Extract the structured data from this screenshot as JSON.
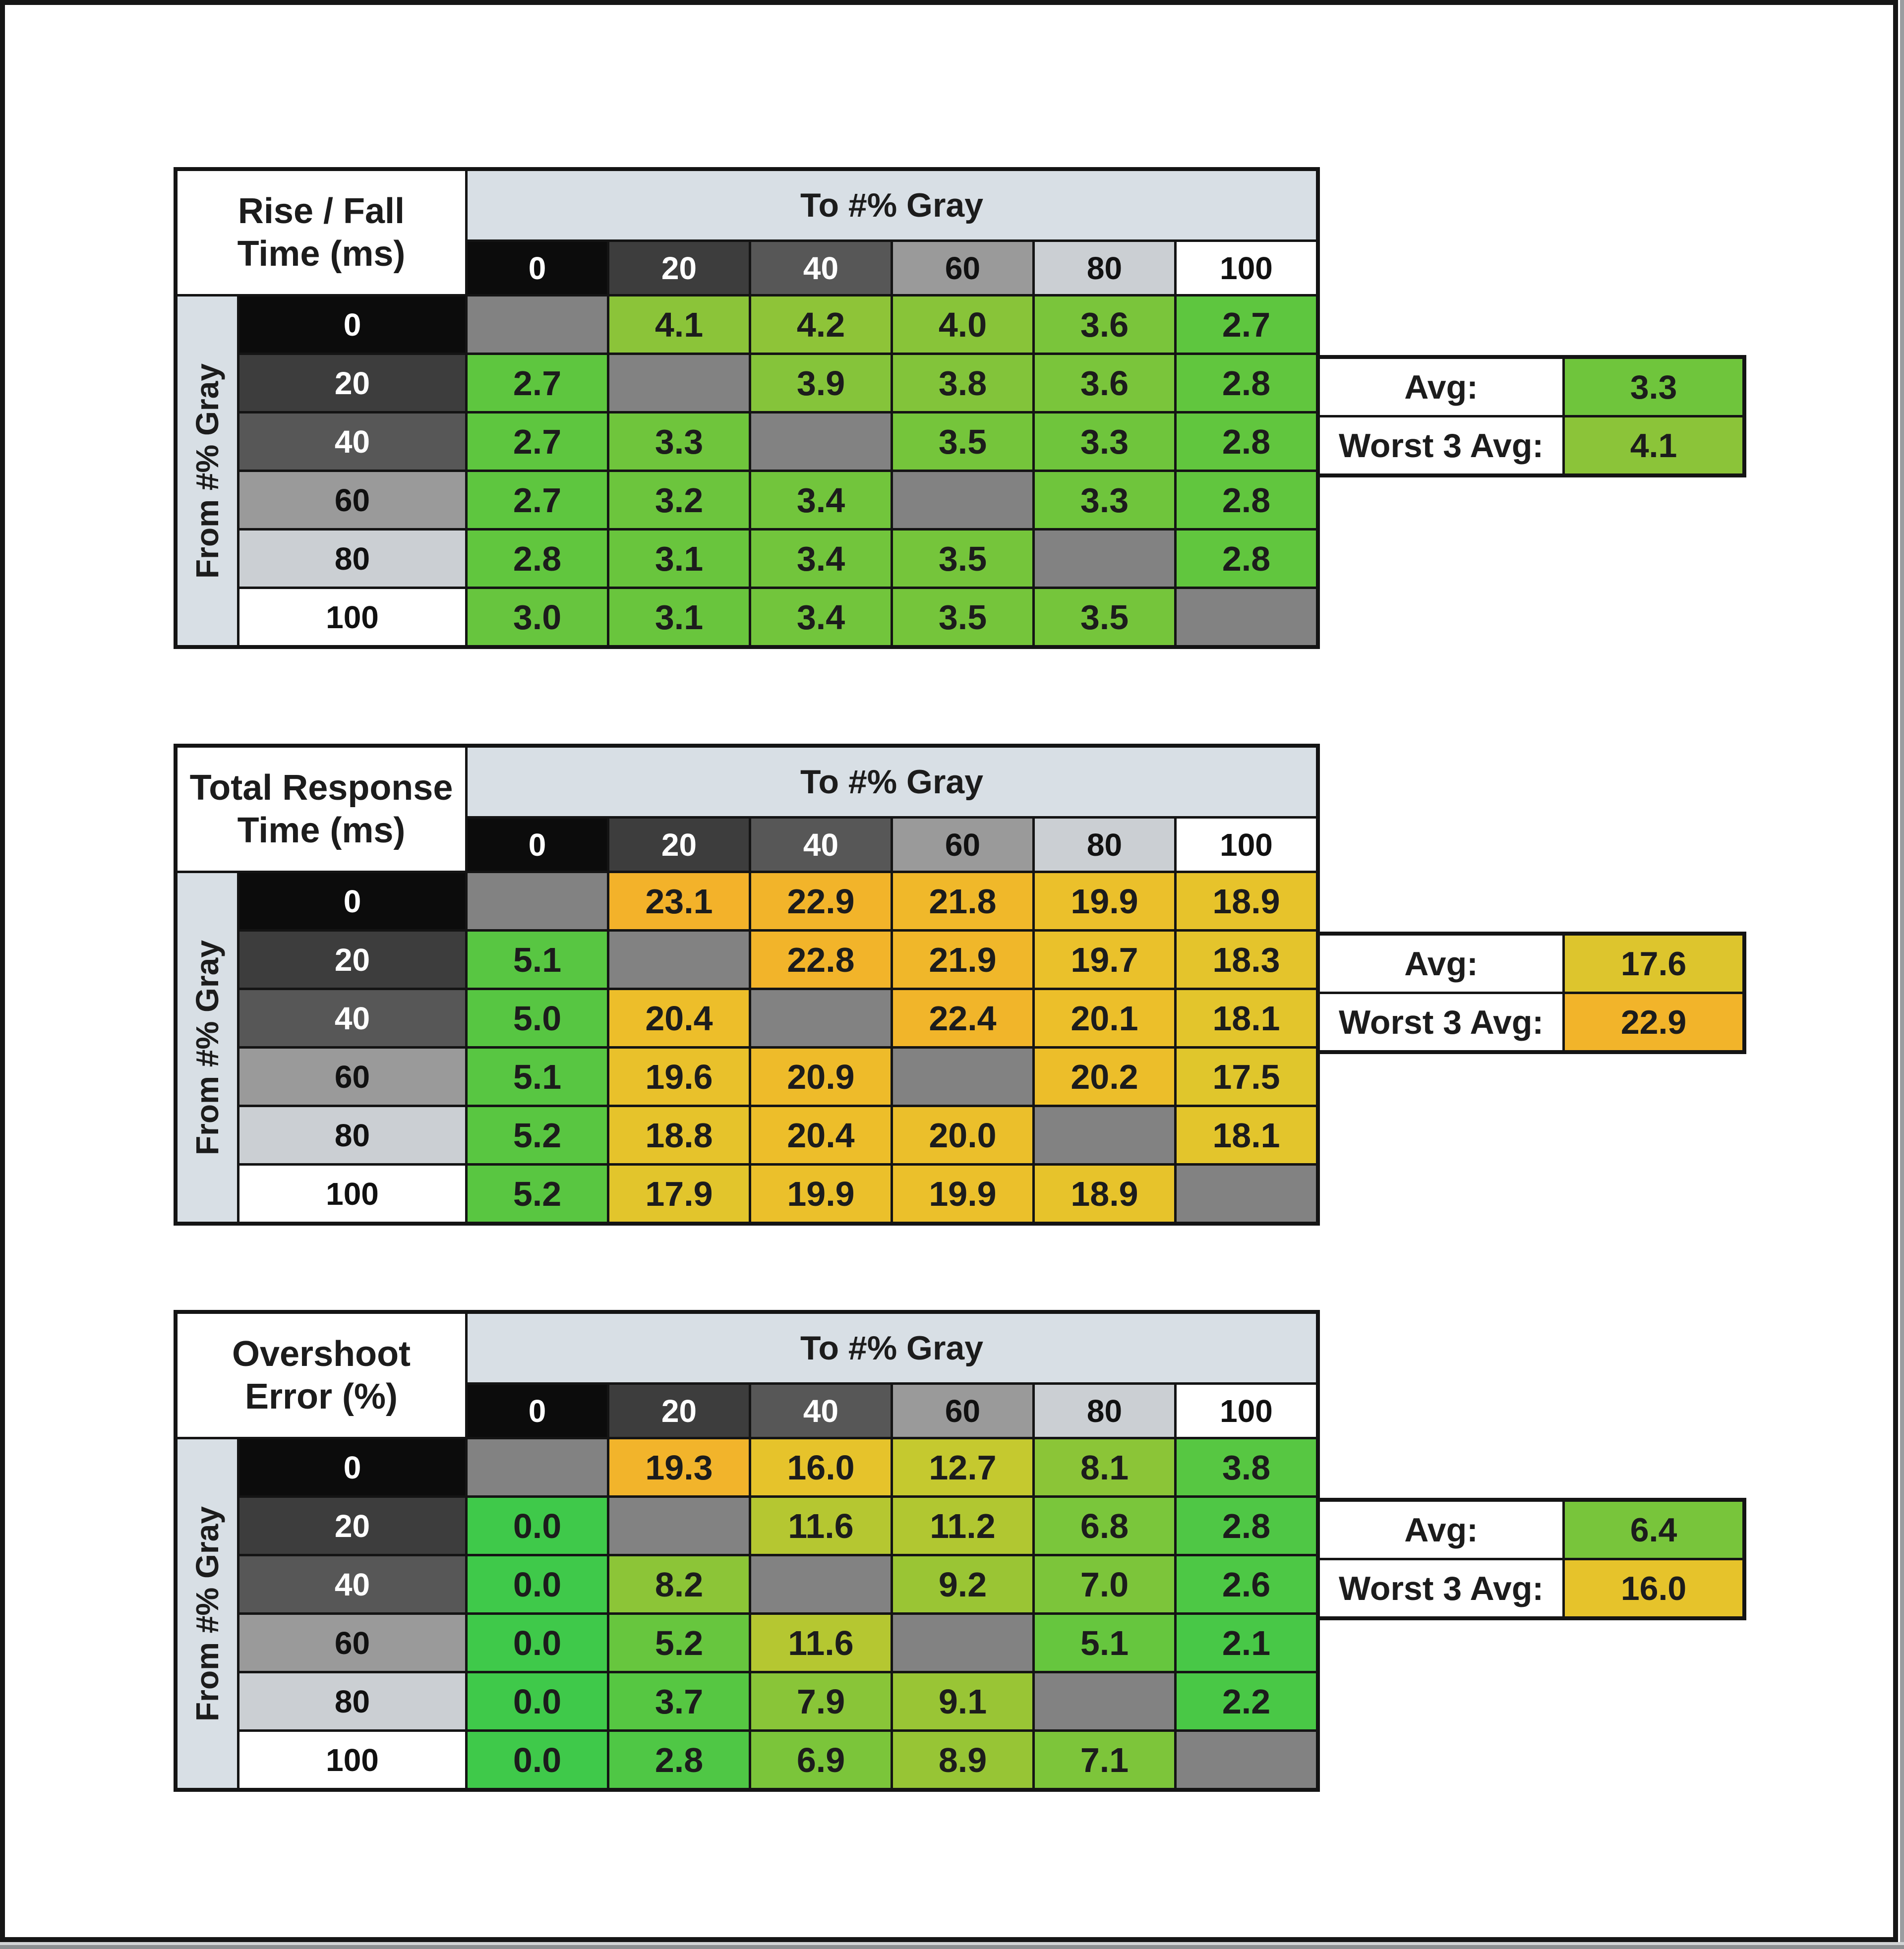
{
  "chart_data": [
    {
      "type": "heatmap",
      "title_line1": "Rise / Fall",
      "title_line2": "Time (ms)",
      "col_axis_label": "To #% Gray",
      "row_axis_label": "From #% Gray",
      "columns": [
        "0",
        "20",
        "40",
        "60",
        "80",
        "100"
      ],
      "rows": [
        "0",
        "20",
        "40",
        "60",
        "80",
        "100"
      ],
      "cells": [
        [
          null,
          {
            "v": "4.1",
            "c": "#8bc439"
          },
          {
            "v": "4.2",
            "c": "#8ec438"
          },
          {
            "v": "4.0",
            "c": "#88c439"
          },
          {
            "v": "3.6",
            "c": "#7ac53b"
          },
          {
            "v": "2.7",
            "c": "#5ec63f"
          }
        ],
        [
          {
            "v": "2.7",
            "c": "#5ec63f"
          },
          null,
          {
            "v": "3.9",
            "c": "#85c43a"
          },
          {
            "v": "3.8",
            "c": "#82c43a"
          },
          {
            "v": "3.6",
            "c": "#7ac53b"
          },
          {
            "v": "2.8",
            "c": "#61c63e"
          }
        ],
        [
          {
            "v": "2.7",
            "c": "#5ec63f"
          },
          {
            "v": "3.3",
            "c": "#6fc53c"
          },
          null,
          {
            "v": "3.5",
            "c": "#75c53b"
          },
          {
            "v": "3.3",
            "c": "#6fc53c"
          },
          {
            "v": "2.8",
            "c": "#61c63e"
          }
        ],
        [
          {
            "v": "2.7",
            "c": "#5ec63f"
          },
          {
            "v": "3.2",
            "c": "#6cc53d"
          },
          {
            "v": "3.4",
            "c": "#72c53c"
          },
          null,
          {
            "v": "3.3",
            "c": "#6fc53c"
          },
          {
            "v": "2.8",
            "c": "#61c63e"
          }
        ],
        [
          {
            "v": "2.8",
            "c": "#61c63e"
          },
          {
            "v": "3.1",
            "c": "#69c53d"
          },
          {
            "v": "3.4",
            "c": "#72c53c"
          },
          {
            "v": "3.5",
            "c": "#75c53b"
          },
          null,
          {
            "v": "2.8",
            "c": "#61c63e"
          }
        ],
        [
          {
            "v": "3.0",
            "c": "#67c53e"
          },
          {
            "v": "3.1",
            "c": "#69c53d"
          },
          {
            "v": "3.4",
            "c": "#72c53c"
          },
          {
            "v": "3.5",
            "c": "#75c53b"
          },
          {
            "v": "3.5",
            "c": "#75c53b"
          },
          null
        ]
      ],
      "summary": {
        "avg_label": "Avg:",
        "avg_value": "3.3",
        "avg_color": "#6fc53c",
        "worst_label": "Worst 3 Avg:",
        "worst_value": "4.1",
        "worst_color": "#8bc439"
      }
    },
    {
      "type": "heatmap",
      "title_line1": "Total Response",
      "title_line2": "Time (ms)",
      "col_axis_label": "To #% Gray",
      "row_axis_label": "From #% Gray",
      "columns": [
        "0",
        "20",
        "40",
        "60",
        "80",
        "100"
      ],
      "rows": [
        "0",
        "20",
        "40",
        "60",
        "80",
        "100"
      ],
      "cells": [
        [
          null,
          {
            "v": "23.1",
            "c": "#f3b22a"
          },
          {
            "v": "22.9",
            "c": "#f2b42a"
          },
          {
            "v": "21.8",
            "c": "#f0b82a"
          },
          {
            "v": "19.9",
            "c": "#ebc02b"
          },
          {
            "v": "18.9",
            "c": "#e7c32b"
          }
        ],
        [
          {
            "v": "5.1",
            "c": "#58c642"
          },
          null,
          {
            "v": "22.8",
            "c": "#f2b42a"
          },
          {
            "v": "21.9",
            "c": "#f0b72a"
          },
          {
            "v": "19.7",
            "c": "#eac12b"
          },
          {
            "v": "18.3",
            "c": "#e4c42c"
          }
        ],
        [
          {
            "v": "5.0",
            "c": "#57c642"
          },
          {
            "v": "20.4",
            "c": "#edbe2a"
          },
          null,
          {
            "v": "22.4",
            "c": "#f1b52a"
          },
          {
            "v": "20.1",
            "c": "#ecbf2a"
          },
          {
            "v": "18.1",
            "c": "#e3c52c"
          }
        ],
        [
          {
            "v": "5.1",
            "c": "#58c642"
          },
          {
            "v": "19.6",
            "c": "#e9c12b"
          },
          {
            "v": "20.9",
            "c": "#eebb2a"
          },
          null,
          {
            "v": "20.2",
            "c": "#ecbe2a"
          },
          {
            "v": "17.5",
            "c": "#e0c62c"
          }
        ],
        [
          {
            "v": "5.2",
            "c": "#59c641"
          },
          {
            "v": "18.8",
            "c": "#e6c32b"
          },
          {
            "v": "20.4",
            "c": "#edbe2a"
          },
          {
            "v": "20.0",
            "c": "#ebbf2b"
          },
          null,
          {
            "v": "18.1",
            "c": "#e3c52c"
          }
        ],
        [
          {
            "v": "5.2",
            "c": "#59c641"
          },
          {
            "v": "17.9",
            "c": "#e2c52c"
          },
          {
            "v": "19.9",
            "c": "#ebc02b"
          },
          {
            "v": "19.9",
            "c": "#ebc02b"
          },
          {
            "v": "18.9",
            "c": "#e7c32b"
          },
          null
        ]
      ],
      "summary": {
        "avg_label": "Avg:",
        "avg_value": "17.6",
        "avg_color": "#ddc52d",
        "worst_label": "Worst 3 Avg:",
        "worst_value": "22.9",
        "worst_color": "#f2b42a"
      }
    },
    {
      "type": "heatmap",
      "title_line1": "Overshoot",
      "title_line2": "Error (%)",
      "col_axis_label": "To #% Gray",
      "row_axis_label": "From #% Gray",
      "columns": [
        "0",
        "20",
        "40",
        "60",
        "80",
        "100"
      ],
      "rows": [
        "0",
        "20",
        "40",
        "60",
        "80",
        "100"
      ],
      "cells": [
        [
          null,
          {
            "v": "19.3",
            "c": "#f2b42b"
          },
          {
            "v": "16.0",
            "c": "#e6c32b"
          },
          {
            "v": "12.7",
            "c": "#c5c92f"
          },
          {
            "v": "8.1",
            "c": "#8bc537"
          },
          {
            "v": "3.8",
            "c": "#57c742"
          }
        ],
        [
          {
            "v": "0.0",
            "c": "#3fc94a"
          },
          null,
          {
            "v": "11.6",
            "c": "#b5c731"
          },
          {
            "v": "11.2",
            "c": "#b1c731"
          },
          {
            "v": "6.8",
            "c": "#7ac63b"
          },
          {
            "v": "2.8",
            "c": "#4fc745"
          }
        ],
        [
          {
            "v": "0.0",
            "c": "#3fc94a"
          },
          {
            "v": "8.2",
            "c": "#8cc537"
          },
          null,
          {
            "v": "9.2",
            "c": "#9ac534"
          },
          {
            "v": "7.0",
            "c": "#7cc53a"
          },
          {
            "v": "2.6",
            "c": "#4dc845"
          }
        ],
        [
          {
            "v": "0.0",
            "c": "#3fc94a"
          },
          {
            "v": "5.2",
            "c": "#67c63e"
          },
          {
            "v": "11.6",
            "c": "#b5c731"
          },
          null,
          {
            "v": "5.1",
            "c": "#66c63e"
          },
          {
            "v": "2.1",
            "c": "#48c847"
          }
        ],
        [
          {
            "v": "0.0",
            "c": "#3fc94a"
          },
          {
            "v": "3.7",
            "c": "#56c742"
          },
          {
            "v": "7.9",
            "c": "#89c538"
          },
          {
            "v": "9.1",
            "c": "#99c535"
          },
          null,
          {
            "v": "2.2",
            "c": "#49c846"
          }
        ],
        [
          {
            "v": "0.0",
            "c": "#3fc94a"
          },
          {
            "v": "2.8",
            "c": "#4fc745"
          },
          {
            "v": "6.9",
            "c": "#7bc53a"
          },
          {
            "v": "8.9",
            "c": "#97c535"
          },
          {
            "v": "7.1",
            "c": "#7dc53a"
          },
          null
        ]
      ],
      "summary": {
        "avg_label": "Avg:",
        "avg_value": "6.4",
        "avg_color": "#78c53b",
        "worst_label": "Worst 3 Avg:",
        "worst_value": "16.0",
        "worst_color": "#e6c32b"
      }
    }
  ],
  "header_styles": {
    "bg": [
      "#0c0c0c",
      "#3d3d3d",
      "#575757",
      "#9a9a9a",
      "#cbcfd3",
      "#ffffff"
    ],
    "fg": [
      "#ffffff",
      "#ffffff",
      "#ffffff",
      "#111111",
      "#111111",
      "#111111"
    ]
  },
  "palette": {
    "band": "#d8dfe5",
    "diagonal": "#828282",
    "grid": "#141414",
    "page_bg": "#ffffff",
    "text": "#1c1c1c"
  }
}
